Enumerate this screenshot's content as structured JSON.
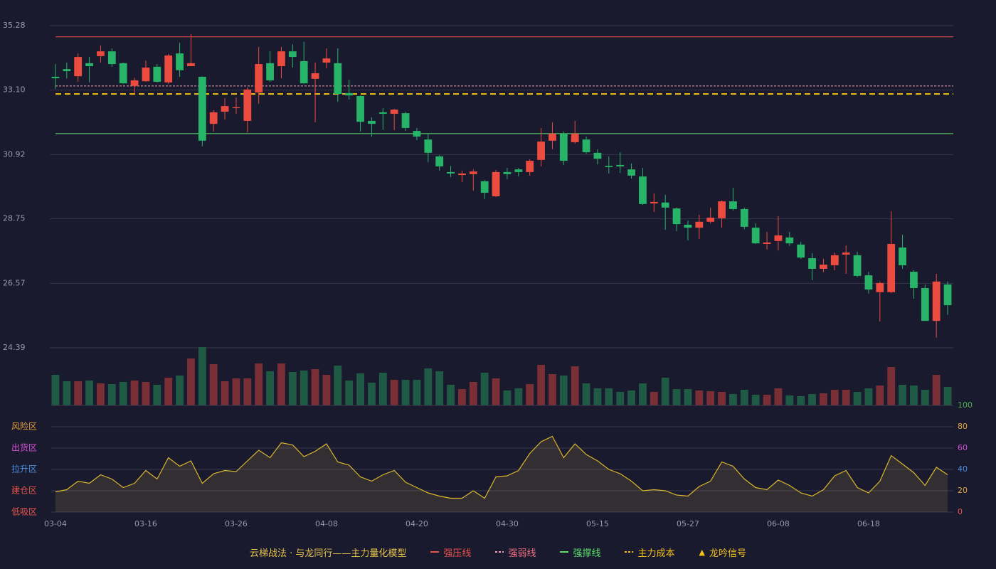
{
  "chart_data": [
    {
      "type": "candlestick",
      "title": "云梯战法 · 与龙同行——主力量化模型",
      "categories": [
        "03-04",
        null,
        null,
        null,
        null,
        null,
        null,
        null,
        "03-16",
        null,
        null,
        null,
        null,
        null,
        null,
        null,
        "03-26",
        null,
        null,
        null,
        null,
        null,
        null,
        null,
        "04-08",
        null,
        null,
        null,
        null,
        null,
        null,
        null,
        "04-20",
        null,
        null,
        null,
        null,
        null,
        null,
        null,
        "04-30",
        null,
        null,
        null,
        null,
        null,
        null,
        null,
        "05-15",
        null,
        null,
        null,
        null,
        null,
        null,
        null,
        "05-27",
        null,
        null,
        null,
        null,
        null,
        null,
        null,
        "06-08",
        null,
        null,
        null,
        null,
        null,
        null,
        null,
        "06-18",
        null,
        null,
        null,
        null,
        null,
        null,
        null
      ],
      "open": [
        33.55,
        33.81,
        33.57,
        34.01,
        34.25,
        34.41,
        34.01,
        33.24,
        33.4,
        33.89,
        33.36,
        34.34,
        33.91,
        33.55,
        31.96,
        32.37,
        32.49,
        32.06,
        33.02,
        34.01,
        33.91,
        34.41,
        34.08,
        33.48,
        34.03,
        34.01,
        33.0,
        32.9,
        32.06,
        32.35,
        32.3,
        32.32,
        31.72,
        31.43,
        30.86,
        30.33,
        30.23,
        30.26,
        30.02,
        29.51,
        30.33,
        30.42,
        30.33,
        30.74,
        31.39,
        31.63,
        31.34,
        31.43,
        30.98,
        30.54,
        30.57,
        30.42,
        30.18,
        29.27,
        29.3,
        29.1,
        28.55,
        28.45,
        28.65,
        28.77,
        29.34,
        29.08,
        28.45,
        27.9,
        28.0,
        28.12,
        27.88,
        27.42,
        27.06,
        27.18,
        27.54,
        27.52,
        26.84,
        26.27,
        26.27,
        27.78,
        26.96,
        26.41,
        25.3,
        26.53
      ],
      "high": [
        33.98,
        34.03,
        34.34,
        34.22,
        34.61,
        34.51,
        34.03,
        33.52,
        34.1,
        33.98,
        34.32,
        34.7,
        34.99,
        33.57,
        32.42,
        32.83,
        32.85,
        33.19,
        34.56,
        34.41,
        34.56,
        34.65,
        34.73,
        34.03,
        34.51,
        34.51,
        33.45,
        32.92,
        32.18,
        32.49,
        32.47,
        32.37,
        31.82,
        31.65,
        30.9,
        30.54,
        30.38,
        30.42,
        30.06,
        30.4,
        30.47,
        30.47,
        30.76,
        31.82,
        32.01,
        31.7,
        32.06,
        31.53,
        31.1,
        30.86,
        31.0,
        30.62,
        30.47,
        29.61,
        29.56,
        29.13,
        28.69,
        28.89,
        29.13,
        29.37,
        29.8,
        29.13,
        28.6,
        28.31,
        28.84,
        28.31,
        27.97,
        27.59,
        27.4,
        27.61,
        27.85,
        27.64,
        26.96,
        26.63,
        29.01,
        28.21,
        27.01,
        26.53,
        26.89,
        26.63
      ],
      "low": [
        33.14,
        33.5,
        33.38,
        33.36,
        34.03,
        33.89,
        33.31,
        32.97,
        33.38,
        33.36,
        33.31,
        33.55,
        33.91,
        31.2,
        31.7,
        32.11,
        32.3,
        31.67,
        32.64,
        33.38,
        33.5,
        33.86,
        33.31,
        32.01,
        33.84,
        32.71,
        32.78,
        31.7,
        31.53,
        31.75,
        31.75,
        31.72,
        31.41,
        30.66,
        30.38,
        30.16,
        29.99,
        29.7,
        29.42,
        29.49,
        30.09,
        30.18,
        30.21,
        30.52,
        31.1,
        30.57,
        31.29,
        30.95,
        30.59,
        30.28,
        30.3,
        30.11,
        29.22,
        28.98,
        28.38,
        28.33,
        28.02,
        28.07,
        28.6,
        28.45,
        29.03,
        28.4,
        27.9,
        27.71,
        27.68,
        27.83,
        27.4,
        26.67,
        26.94,
        27.01,
        26.89,
        26.77,
        26.22,
        25.28,
        26.24,
        27.06,
        26.05,
        25.3,
        24.73,
        25.5
      ],
      "close": [
        33.5,
        33.74,
        34.22,
        33.91,
        34.41,
        33.98,
        33.33,
        33.43,
        33.86,
        33.38,
        34.27,
        33.77,
        34.01,
        31.39,
        32.35,
        32.56,
        32.52,
        33.12,
        33.98,
        33.43,
        34.41,
        34.22,
        33.33,
        33.67,
        34.17,
        32.97,
        32.92,
        32.03,
        31.96,
        32.3,
        32.44,
        31.82,
        31.53,
        30.98,
        30.52,
        30.28,
        30.28,
        30.35,
        29.63,
        30.33,
        30.26,
        30.33,
        30.71,
        31.36,
        31.63,
        30.71,
        31.63,
        31.0,
        30.78,
        30.5,
        30.52,
        30.21,
        29.25,
        29.32,
        29.13,
        28.57,
        28.45,
        28.65,
        28.79,
        29.34,
        29.08,
        28.48,
        27.92,
        27.95,
        28.19,
        27.92,
        27.44,
        27.06,
        27.2,
        27.52,
        27.61,
        26.82,
        26.36,
        26.58,
        27.9,
        27.18,
        26.41,
        25.3,
        26.63,
        25.83
      ],
      "up_color": "#ec4b3f",
      "down_color": "#27b368",
      "ylim": [
        24.39,
        35.28
      ],
      "yticks": [
        24.39,
        26.57,
        28.75,
        30.92,
        {
          "value": 33.1,
          "label": "33.10"
        },
        35.28
      ],
      "lines": [
        {
          "name": "强压线",
          "value": 34.9,
          "color": "#e8534a",
          "dashed": false
        },
        {
          "name": "强弱线",
          "value": 33.24,
          "color": "#f0a0b0",
          "dashed": true
        },
        {
          "name": "强撑线",
          "value": 31.63,
          "color": "#5ce06a",
          "dashed": false
        },
        {
          "name": "主力成本",
          "value": 32.97,
          "color": "#f2c21b",
          "dashed": true
        }
      ],
      "signal": {
        "symbol": "▲",
        "name": "龙吟信号",
        "color": "#f2c21b"
      }
    },
    {
      "type": "volume",
      "values": [
        43,
        34,
        34,
        35,
        31,
        30,
        33,
        35,
        33,
        29,
        39,
        42,
        66,
        82,
        58,
        34,
        38,
        38,
        59,
        48,
        59,
        47,
        49,
        51,
        43,
        56,
        35,
        45,
        32,
        46,
        36,
        36,
        36,
        52,
        48,
        29,
        23,
        33,
        46,
        38,
        21,
        24,
        30,
        57,
        44,
        42,
        55,
        31,
        24,
        24,
        19,
        21,
        31,
        19,
        39,
        23,
        23,
        21,
        20,
        19,
        16,
        22,
        15,
        15,
        24,
        14,
        13,
        16,
        17,
        22,
        22,
        19,
        24,
        28,
        54,
        29,
        28,
        22,
        43,
        26
      ],
      "up_color": "#7a2e36",
      "down_color": "#1f5a45",
      "ylim": [
        0,
        82
      ]
    },
    {
      "type": "line",
      "values": [
        19,
        21,
        29,
        27,
        35,
        31,
        23,
        27,
        39,
        31,
        51,
        43,
        48,
        27,
        36,
        39,
        38,
        48,
        58,
        51,
        65,
        63,
        52,
        57,
        64,
        47,
        44,
        33,
        29,
        35,
        39,
        28,
        23,
        18,
        15,
        13,
        13,
        20,
        13,
        33,
        34,
        39,
        55,
        66,
        71,
        51,
        64,
        54,
        48,
        40,
        36,
        29,
        20,
        21,
        20,
        16,
        15,
        24,
        29,
        47,
        43,
        31,
        23,
        21,
        30,
        25,
        18,
        15,
        21,
        34,
        39,
        23,
        18,
        29,
        53,
        45,
        37,
        25,
        42,
        35
      ],
      "color": "#d9b72c",
      "fill": "rgba(140,120,70,0.22)",
      "ylim": [
        0,
        100
      ],
      "yticks": [
        0,
        20,
        40,
        60,
        80,
        100
      ],
      "ytick_colors": [
        "#e8534a",
        "#e6a23c",
        "#4a90e2",
        "#d64fd6",
        "#e6a23c",
        "#4caf50"
      ],
      "zones": [
        {
          "label": "风险区",
          "value": 80,
          "color": "#e6a23c"
        },
        {
          "label": "出货区",
          "value": 60,
          "color": "#d64fd6"
        },
        {
          "label": "拉升区",
          "value": 40,
          "color": "#4a90e2"
        },
        {
          "label": "建仓区",
          "value": 20,
          "color": "#e8534a"
        },
        {
          "label": "低吸区",
          "value": 0,
          "color": "#e8534a"
        }
      ]
    }
  ]
}
